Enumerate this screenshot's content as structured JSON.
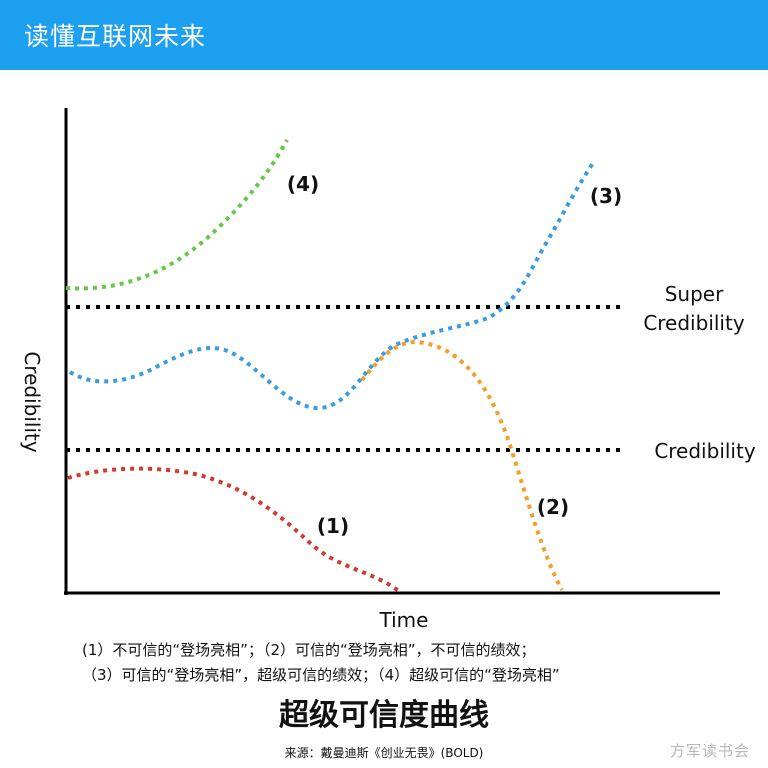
{
  "banner": {
    "title": "读懂互联网未来"
  },
  "diagram": {
    "x_axis_label": "Time",
    "y_axis_label": "Credibility",
    "thresholds": [
      {
        "label_line1": "Super",
        "label_line2": "Credibility"
      },
      {
        "label": "Credibility"
      }
    ],
    "curves": [
      {
        "label": "(1)",
        "color": "#d23a2e"
      },
      {
        "label": "(2)",
        "color": "#f0a028"
      },
      {
        "label": "(3)",
        "color": "#3a9ce0"
      },
      {
        "label": "(4)",
        "color": "#66c84a"
      }
    ]
  },
  "caption": {
    "line1": "(1）不可信的“登场亮相”；（2）可信的“登场亮相”，不可信的绩效；",
    "line2": "（3）可信的“登场亮相”，超级可信的绩效；（4）超级可信的“登场亮相”"
  },
  "title": "超级可信度曲线",
  "source": "来源：戴曼迪斯《创业无畏》(BOLD)",
  "watermark": "方军读书会"
}
